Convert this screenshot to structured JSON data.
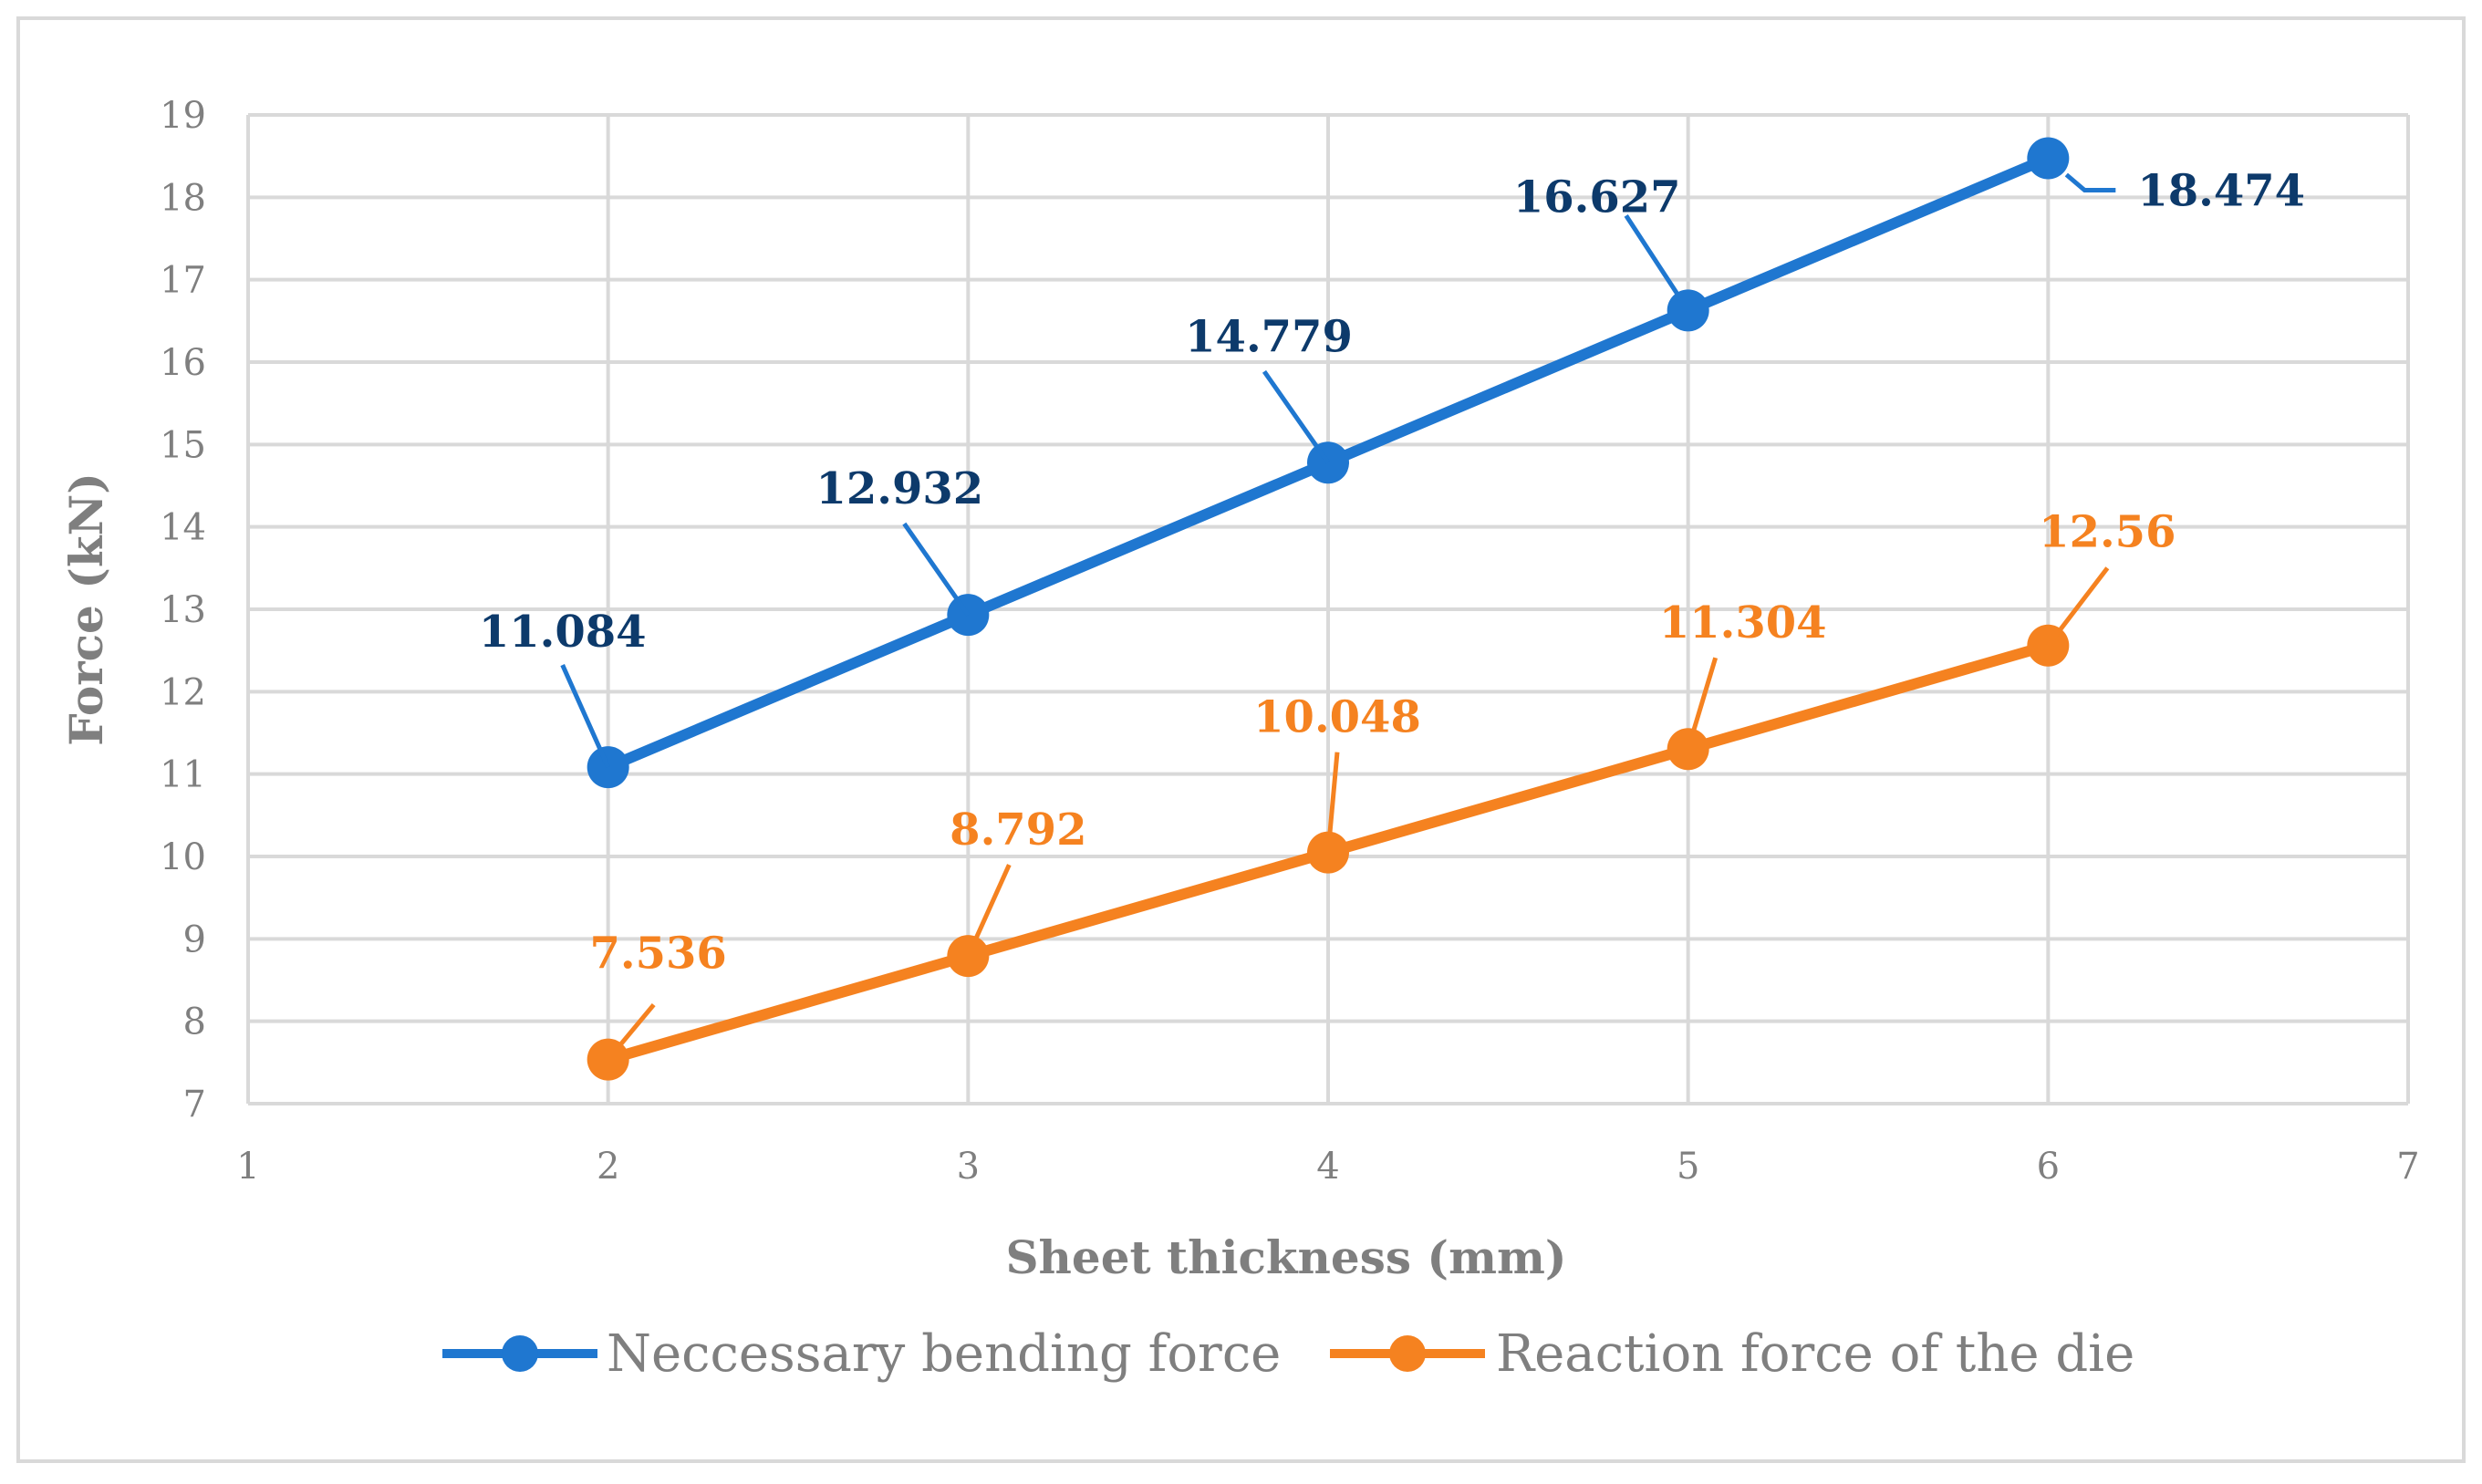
{
  "chart_data": {
    "type": "line",
    "title": "",
    "xlabel": "Sheet thickness (mm)",
    "ylabel": "Force (kN)",
    "xlim": [
      1,
      7
    ],
    "ylim": [
      7,
      19
    ],
    "x_ticks": [
      1,
      2,
      3,
      4,
      5,
      6,
      7
    ],
    "y_ticks": [
      7,
      8,
      9,
      10,
      11,
      12,
      13,
      14,
      15,
      16,
      17,
      18,
      19
    ],
    "grid": true,
    "legend_position": "bottom",
    "series": [
      {
        "name": "Neccessary bending force",
        "color": "#1f77d0",
        "label_color": "#0d3a6b",
        "x": [
          2,
          3,
          4,
          5,
          6
        ],
        "y": [
          11.084,
          12.932,
          14.779,
          16.627,
          18.474
        ],
        "labels": [
          "11.084",
          "12.932",
          "14.779",
          "16.627",
          "18.474"
        ]
      },
      {
        "name": "Reaction force of the die",
        "color": "#f58220",
        "label_color": "#f58220",
        "x": [
          2,
          3,
          4,
          5,
          6
        ],
        "y": [
          7.536,
          8.792,
          10.048,
          11.304,
          12.56
        ],
        "labels": [
          "7.536",
          "8.792",
          "10.048",
          "11.304",
          "12.56"
        ]
      }
    ]
  }
}
